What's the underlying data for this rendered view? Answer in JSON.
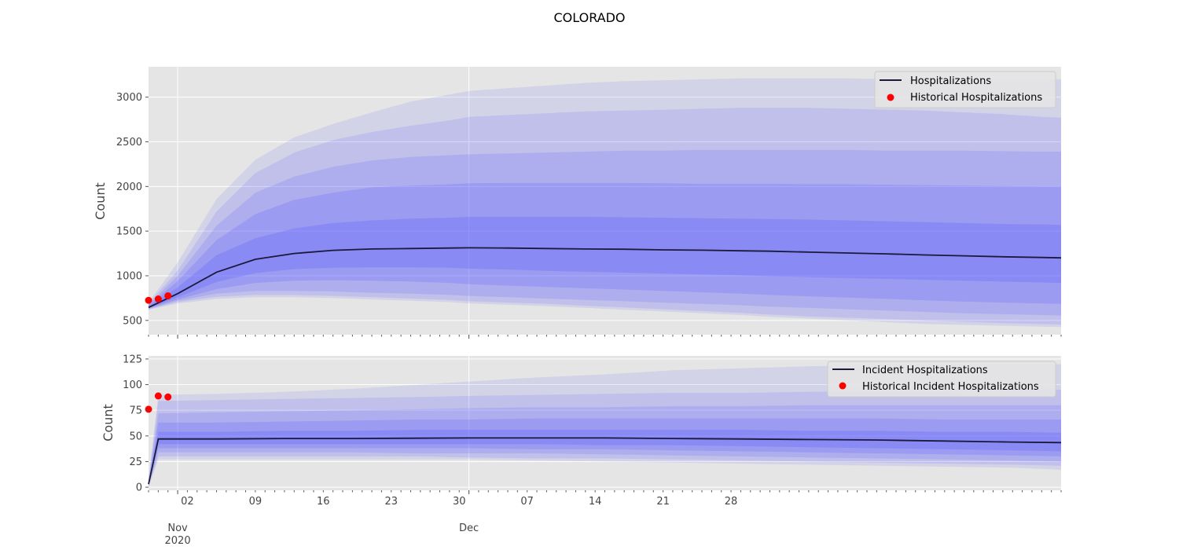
{
  "figure_title": "COLORADO",
  "colors": {
    "band": "#5454ff",
    "median": "#1a1a3c",
    "history": "#ff0000",
    "background": "#e5e5e5",
    "grid": "#ffffff"
  },
  "chart_data": [
    {
      "type": "area",
      "ylabel": "Count",
      "ylim": [
        340,
        3340
      ],
      "xlim": [
        "2020-10-29",
        "2021-01-31"
      ],
      "yticks": [
        500,
        1000,
        1500,
        2000,
        2500,
        3000
      ],
      "major_xticks": [
        {
          "date": "2020-11-01",
          "label": "02"
        },
        {
          "date": "2020-12-01",
          "label": ""
        }
      ],
      "grid": true,
      "legend_position": "top-right",
      "x": [
        "2020-10-29",
        "2020-11-01",
        "2020-11-05",
        "2020-11-09",
        "2020-11-13",
        "2020-11-17",
        "2020-11-21",
        "2020-11-25",
        "2020-11-29",
        "2020-12-01",
        "2020-12-05",
        "2020-12-09",
        "2020-12-13",
        "2020-12-17",
        "2020-12-21",
        "2020-12-25",
        "2020-12-29",
        "2021-01-01",
        "2021-01-05",
        "2021-01-09",
        "2021-01-13",
        "2021-01-17",
        "2021-01-21",
        "2021-01-25",
        "2021-01-29",
        "2021-01-31"
      ],
      "series": [
        {
          "name": "Hospitalizations",
          "values": [
            645,
            800,
            1040,
            1185,
            1250,
            1285,
            1300,
            1305,
            1310,
            1313,
            1310,
            1305,
            1300,
            1297,
            1290,
            1287,
            1280,
            1275,
            1265,
            1255,
            1245,
            1233,
            1223,
            1213,
            1205,
            1200
          ]
        }
      ],
      "bands": {
        "upper": [
          [
            660,
            870,
            1230,
            1420,
            1530,
            1590,
            1620,
            1640,
            1650,
            1660,
            1660,
            1660,
            1660,
            1655,
            1650,
            1645,
            1640,
            1635,
            1630,
            1620,
            1610,
            1600,
            1590,
            1580,
            1575,
            1570
          ],
          [
            670,
            940,
            1400,
            1690,
            1850,
            1930,
            1990,
            2010,
            2025,
            2035,
            2040,
            2040,
            2040,
            2040,
            2035,
            2030,
            2030,
            2030,
            2025,
            2025,
            2020,
            2015,
            2010,
            2005,
            2000,
            2000
          ],
          [
            680,
            1000,
            1560,
            1930,
            2110,
            2220,
            2290,
            2330,
            2350,
            2360,
            2370,
            2380,
            2390,
            2400,
            2400,
            2410,
            2410,
            2410,
            2410,
            2410,
            2400,
            2400,
            2400,
            2395,
            2390,
            2390
          ],
          [
            690,
            1060,
            1720,
            2150,
            2380,
            2520,
            2610,
            2680,
            2740,
            2780,
            2800,
            2820,
            2840,
            2850,
            2860,
            2870,
            2880,
            2880,
            2880,
            2870,
            2860,
            2850,
            2830,
            2810,
            2780,
            2770
          ],
          [
            700,
            1150,
            1860,
            2300,
            2550,
            2700,
            2830,
            2950,
            3030,
            3070,
            3100,
            3130,
            3160,
            3180,
            3190,
            3200,
            3210,
            3210,
            3210,
            3210,
            3200,
            3200,
            3200,
            3200,
            3200,
            3200
          ]
        ],
        "lower": [
          [
            640,
            760,
            930,
            1030,
            1075,
            1090,
            1095,
            1095,
            1090,
            1080,
            1070,
            1055,
            1045,
            1035,
            1025,
            1015,
            1005,
            995,
            985,
            975,
            965,
            955,
            945,
            935,
            925,
            920
          ],
          [
            635,
            735,
            850,
            920,
            945,
            950,
            945,
            935,
            920,
            905,
            890,
            875,
            860,
            845,
            830,
            815,
            800,
            785,
            770,
            755,
            740,
            725,
            710,
            700,
            690,
            685
          ],
          [
            630,
            720,
            800,
            830,
            830,
            825,
            810,
            800,
            785,
            775,
            760,
            745,
            730,
            715,
            700,
            685,
            670,
            655,
            640,
            625,
            610,
            595,
            580,
            570,
            560,
            555
          ],
          [
            625,
            705,
            765,
            785,
            785,
            775,
            760,
            745,
            730,
            715,
            700,
            685,
            665,
            645,
            625,
            605,
            585,
            565,
            545,
            530,
            515,
            500,
            485,
            470,
            460,
            455
          ],
          [
            620,
            690,
            740,
            760,
            760,
            750,
            735,
            720,
            705,
            690,
            675,
            660,
            640,
            620,
            600,
            580,
            560,
            540,
            520,
            500,
            480,
            460,
            450,
            440,
            430,
            425
          ]
        ]
      },
      "history": {
        "name": "Historical Hospitalizations",
        "x": [
          "2020-10-29",
          "2020-10-30",
          "2020-10-31"
        ],
        "values": [
          725,
          740,
          775
        ]
      }
    },
    {
      "type": "area",
      "ylabel": "Count",
      "ylim": [
        -3,
        128
      ],
      "xlim": [
        "2020-10-29",
        "2021-01-31"
      ],
      "yticks": [
        0,
        25,
        50,
        75,
        100,
        125
      ],
      "minor_xticks": [
        {
          "date": "2020-11-02",
          "label": "02"
        },
        {
          "date": "2020-11-09",
          "label": "09"
        },
        {
          "date": "2020-11-16",
          "label": "16"
        },
        {
          "date": "2020-11-23",
          "label": "23"
        },
        {
          "date": "2020-11-30",
          "label": "30"
        },
        {
          "date": "2020-12-07",
          "label": "07"
        },
        {
          "date": "2020-12-14",
          "label": "14"
        },
        {
          "date": "2020-12-21",
          "label": "21"
        },
        {
          "date": "2020-12-28",
          "label": "28"
        }
      ],
      "major_xticks": [
        {
          "date": "2020-11-01",
          "label": "Nov\n2020"
        },
        {
          "date": "2020-12-01",
          "label": "Dec"
        }
      ],
      "grid": true,
      "legend_position": "top-right",
      "x": [
        "2020-10-29",
        "2020-10-30",
        "2020-11-05",
        "2020-11-12",
        "2020-11-19",
        "2020-11-26",
        "2020-12-01",
        "2020-12-08",
        "2020-12-15",
        "2020-12-22",
        "2020-12-29",
        "2021-01-05",
        "2021-01-12",
        "2021-01-19",
        "2021-01-26",
        "2021-01-31"
      ],
      "series": [
        {
          "name": "Incident Hospitalizations",
          "values": [
            3,
            47,
            47,
            47.5,
            47.5,
            47.8,
            48,
            48,
            48,
            47.5,
            47,
            46.5,
            46,
            45,
            44,
            43.5
          ]
        }
      ],
      "bands": {
        "upper": [
          [
            4,
            54,
            54,
            55,
            55,
            56,
            56,
            56,
            56,
            56,
            56,
            55,
            55,
            54,
            54,
            53
          ],
          [
            5,
            63,
            63,
            64,
            65,
            66,
            66,
            67,
            67,
            67,
            67,
            67,
            67,
            66,
            66,
            66
          ],
          [
            6,
            72,
            73,
            74,
            75,
            76,
            77,
            78,
            78,
            79,
            79,
            80,
            80,
            80,
            80,
            80
          ],
          [
            7,
            84,
            85,
            86,
            87,
            88,
            89,
            90,
            91,
            92,
            92,
            93,
            94,
            94,
            95,
            95
          ],
          [
            8,
            90,
            91,
            93,
            96,
            100,
            103,
            107,
            110,
            114,
            116,
            118,
            119,
            120,
            120,
            120
          ]
        ],
        "lower": [
          [
            2,
            42,
            42,
            42,
            42,
            42,
            42,
            42,
            41,
            41,
            40,
            39,
            38,
            37,
            36,
            35
          ],
          [
            2,
            38,
            38,
            38,
            38,
            38,
            38,
            37,
            37,
            36,
            35,
            34,
            33,
            32,
            31,
            30
          ],
          [
            1,
            34,
            34,
            34,
            34,
            33,
            33,
            33,
            32,
            31,
            30,
            29,
            28,
            27,
            26,
            25
          ],
          [
            1,
            30,
            30,
            30,
            30,
            30,
            29,
            28,
            28,
            27,
            26,
            25,
            24,
            23,
            22,
            21
          ],
          [
            0,
            27,
            27,
            27,
            27,
            27,
            27,
            26,
            25,
            24,
            23,
            22,
            21,
            20,
            19,
            17
          ]
        ]
      },
      "history": {
        "name": "Historical Incident Hospitalizations",
        "x": [
          "2020-10-29",
          "2020-10-30",
          "2020-10-31"
        ],
        "values": [
          76,
          89,
          88
        ]
      }
    }
  ]
}
